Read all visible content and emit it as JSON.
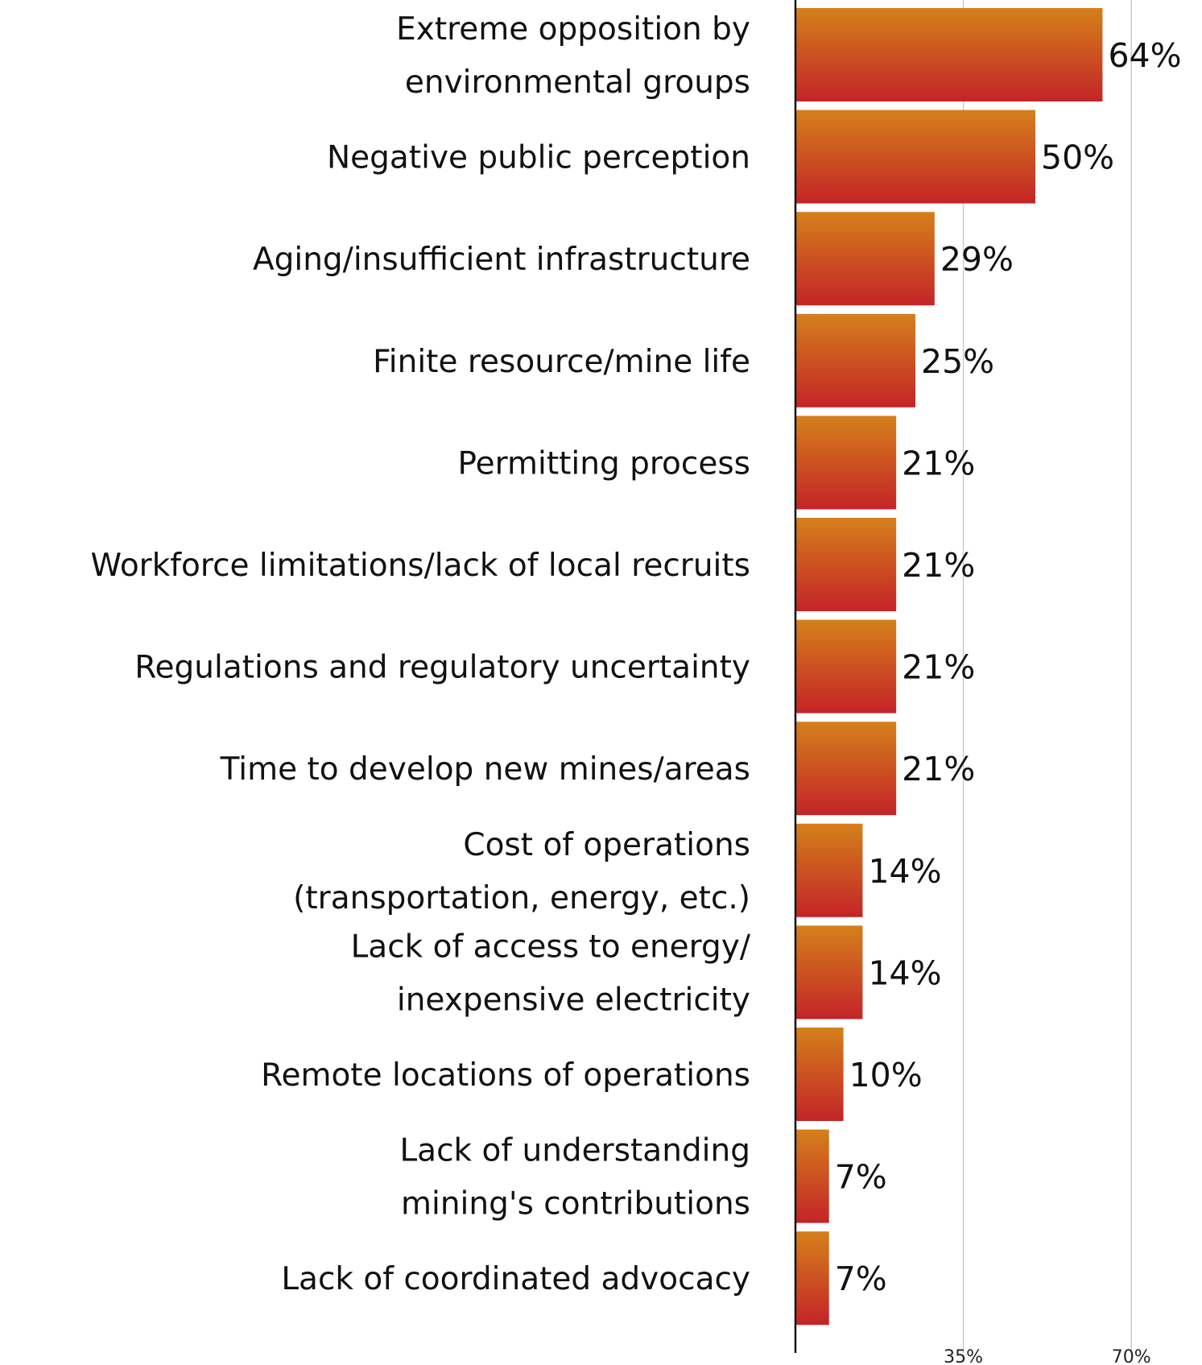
{
  "chart_data": {
    "type": "bar",
    "orientation": "horizontal",
    "title": "",
    "xlabel": "",
    "ylabel": "",
    "xlim": [
      0,
      72
    ],
    "grid": true,
    "gridlines": [
      35,
      70
    ],
    "tick_labels": [
      "35%",
      "70%"
    ],
    "legend": "none",
    "categories": [
      [
        "Extreme opposition by",
        "environmental groups"
      ],
      [
        "Negative public perception"
      ],
      [
        "Aging/insufficient infrastructure"
      ],
      [
        "Finite resource/mine life"
      ],
      [
        "Permitting process"
      ],
      [
        "Workforce limitations/lack of local recruits"
      ],
      [
        "Regulations and regulatory uncertainty"
      ],
      [
        "Time to develop new mines/areas"
      ],
      [
        "Cost of operations",
        "(transportation, energy, etc.)"
      ],
      [
        "Lack of access to energy/",
        "inexpensive electricity"
      ],
      [
        "Remote locations of operations"
      ],
      [
        "Lack of understanding",
        "mining's contributions"
      ],
      [
        "Lack of coordinated advocacy"
      ]
    ],
    "values": [
      64,
      50,
      29,
      25,
      21,
      21,
      21,
      21,
      14,
      14,
      10,
      7,
      7
    ],
    "value_labels": [
      "64%",
      "50%",
      "29%",
      "25%",
      "21%",
      "21%",
      "21%",
      "21%",
      "14%",
      "14%",
      "10%",
      "7%",
      "7%"
    ],
    "colors": {
      "bar_top": "#d5801b",
      "bar_bottom": "#c42428",
      "axis": "#111111",
      "grid": "#cccccc"
    }
  }
}
